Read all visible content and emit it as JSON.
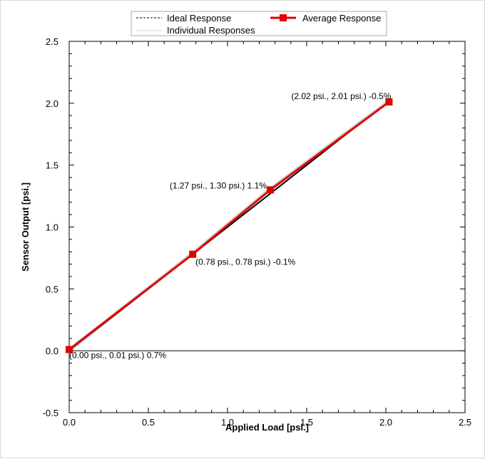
{
  "chart_data": {
    "type": "line",
    "xlabel": "Applied Load [psi.]",
    "ylabel": "Sensor Output [psi.]",
    "xlim": [
      0,
      2.5
    ],
    "ylim": [
      -0.5,
      2.5
    ],
    "xticks": [
      0.0,
      0.5,
      1.0,
      1.5,
      2.0,
      2.5
    ],
    "yticks": [
      -0.5,
      0.0,
      0.5,
      1.0,
      1.5,
      2.0,
      2.5
    ],
    "xtick_labels": [
      "0.0",
      "0.5",
      "1.0",
      "1.5",
      "2.0",
      "2.5"
    ],
    "ytick_labels": [
      "-0.5",
      "0.0",
      "0.5",
      "1.0",
      "1.5",
      "2.0",
      "2.5"
    ],
    "grid": false,
    "legend_placement": "top",
    "legend": [
      {
        "label": "Ideal Response",
        "style": "dashed",
        "color": "#000000"
      },
      {
        "label": "Average Response",
        "style": "solid-square-marker",
        "color": "#e00000"
      },
      {
        "label": "Individual Responses",
        "style": "solid",
        "color": "#d0d0d0"
      }
    ],
    "series": [
      {
        "name": "Ideal Response",
        "x": [
          0.0,
          2.02
        ],
        "y": [
          0.0,
          2.02
        ],
        "color": "#000000"
      },
      {
        "name": "Individual Responses",
        "x": [
          0.0,
          0.78,
          1.27,
          2.02
        ],
        "y": [
          0.01,
          0.79,
          1.31,
          2.02
        ],
        "color": "#d0d0d0"
      },
      {
        "name": "Average Response",
        "x": [
          0.0,
          0.78,
          1.27,
          2.02
        ],
        "y": [
          0.01,
          0.78,
          1.3,
          2.01
        ],
        "color": "#e00000"
      }
    ],
    "zero_line": 0.0,
    "annotations": [
      {
        "text": "(0.00 psi., 0.01 psi.) 0.7%",
        "x": 0.0,
        "y": 0.01
      },
      {
        "text": "(0.78 psi., 0.78 psi.) -0.1%",
        "x": 0.78,
        "y": 0.78
      },
      {
        "text": "(1.27 psi., 1.30 psi.) 1.1%",
        "x": 1.27,
        "y": 1.3
      },
      {
        "text": "(2.02 psi., 2.01 psi.) -0.5%",
        "x": 2.02,
        "y": 2.01
      }
    ]
  }
}
